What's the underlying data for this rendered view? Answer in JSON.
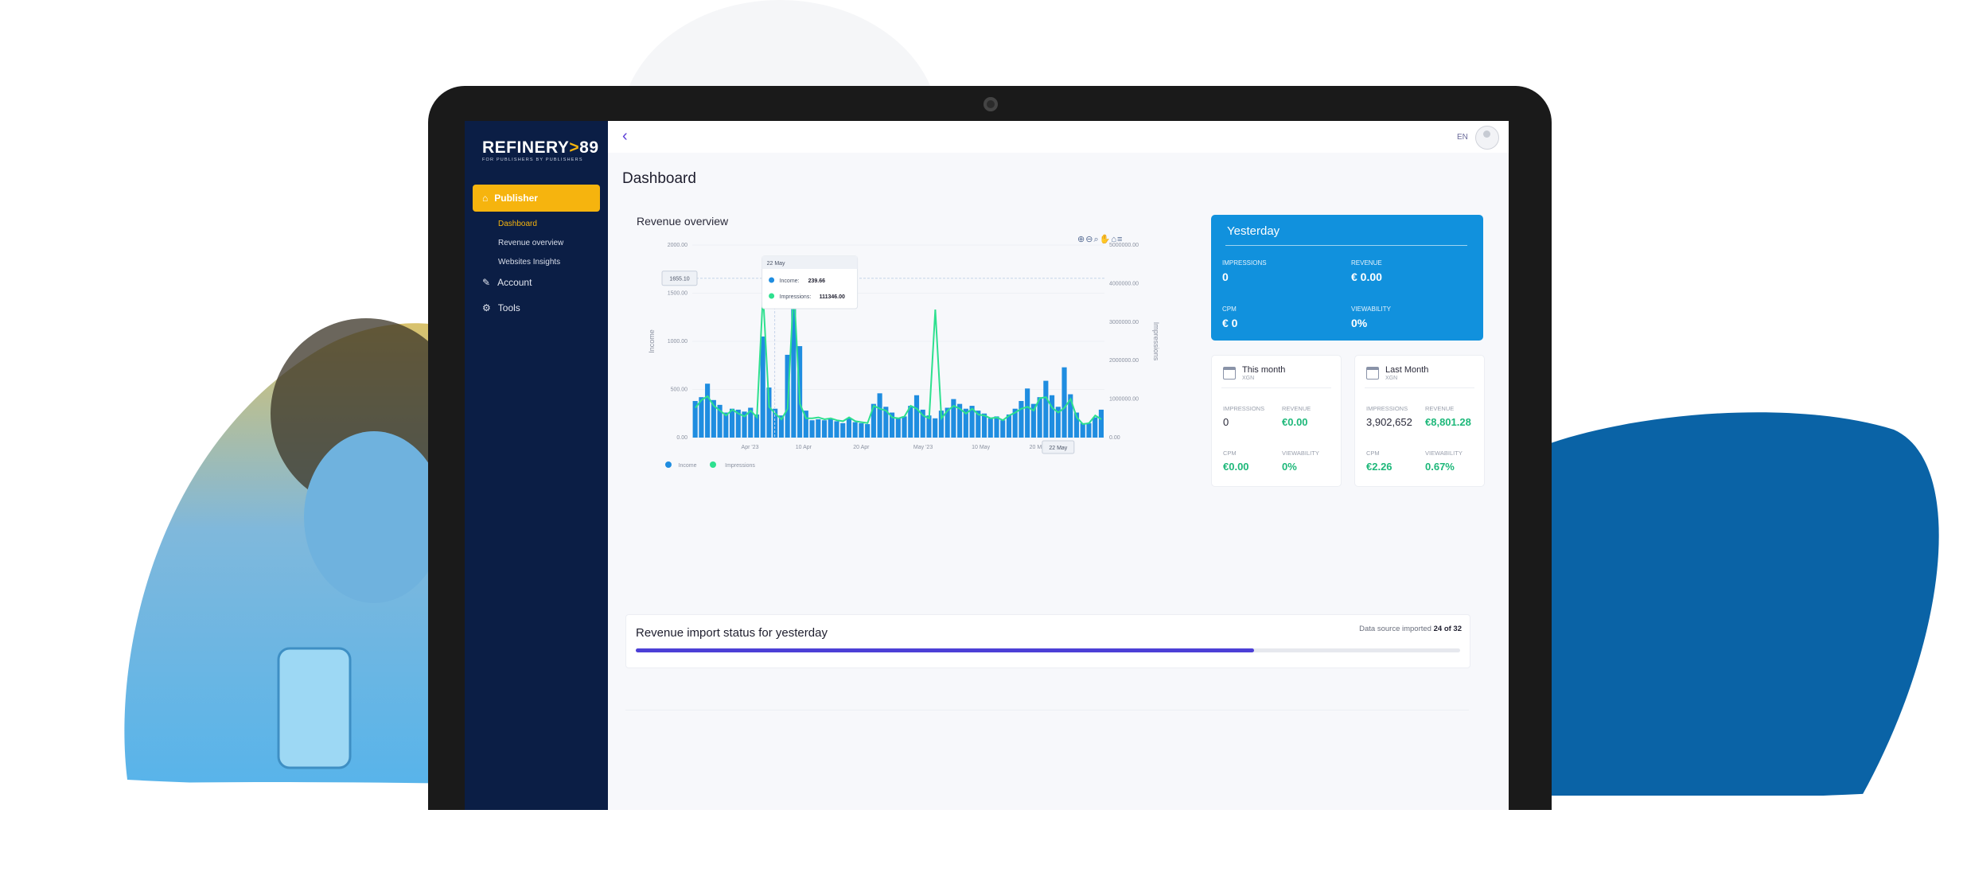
{
  "brand": {
    "logo_text": "REFINERY",
    "logo_num": "89",
    "tagline": "FOR PUBLISHERS BY PUBLISHERS"
  },
  "sidebar": {
    "active": {
      "label": "Publisher",
      "icon": "home-icon"
    },
    "subitems": [
      {
        "label": "Dashboard",
        "active": true
      },
      {
        "label": "Revenue overview",
        "active": false
      },
      {
        "label": "Websites Insights",
        "active": false
      }
    ],
    "items": [
      {
        "label": "Account",
        "icon": "edit-icon"
      },
      {
        "label": "Tools",
        "icon": "gear-icon"
      }
    ]
  },
  "header": {
    "language": "EN"
  },
  "page": {
    "title": "Dashboard"
  },
  "revenue_card": {
    "title": "Revenue overview"
  },
  "chart_data": {
    "type": "bar",
    "title": "Revenue overview",
    "ylabel": "Income",
    "y2label": "Impressions",
    "ylim": [
      0,
      2000
    ],
    "y2lim": [
      0,
      5000000
    ],
    "yticks": [
      "0.00",
      "500.00",
      "1000.00",
      "1500.00",
      "2000.00"
    ],
    "y2ticks": [
      "0.00",
      "1000000.00",
      "2000000.00",
      "3000000.00",
      "4000000.00",
      "5000000.00"
    ],
    "xticks": [
      "Apr '23",
      "10 Apr",
      "20 Apr",
      "May '23",
      "10 May",
      "20 May"
    ],
    "income": [
      380,
      420,
      560,
      390,
      340,
      260,
      300,
      290,
      270,
      310,
      240,
      1050,
      520,
      300,
      230,
      860,
      1450,
      950,
      280,
      180,
      190,
      180,
      190,
      170,
      150,
      200,
      160,
      150,
      140,
      350,
      460,
      320,
      260,
      200,
      220,
      330,
      440,
      290,
      230,
      200,
      280,
      310,
      400,
      350,
      300,
      330,
      280,
      250,
      200,
      220,
      180,
      240,
      300,
      380,
      510,
      350,
      420,
      590,
      440,
      320,
      730,
      450,
      260,
      150,
      150,
      210,
      290
    ],
    "impressions_income_scale": [
      310,
      390,
      430,
      330,
      280,
      230,
      290,
      250,
      220,
      280,
      210,
      1490,
      320,
      250,
      190,
      300,
      1560,
      350,
      200,
      200,
      210,
      190,
      200,
      180,
      170,
      210,
      170,
      160,
      150,
      330,
      300,
      280,
      210,
      200,
      220,
      330,
      300,
      230,
      200,
      1330,
      200,
      280,
      330,
      300,
      250,
      300,
      240,
      230,
      200,
      210,
      180,
      230,
      260,
      300,
      320,
      280,
      410,
      420,
      310,
      260,
      310,
      400,
      210,
      140,
      150,
      230,
      190
    ],
    "legend": [
      "Income",
      "Impressions"
    ],
    "tooltip": {
      "date": "22 May",
      "income_label": "Income:",
      "income_value": "239.66",
      "impressions_label": "Impressions:",
      "impressions_value": "111346.00"
    },
    "crosshair_y_label": "1655.10",
    "crosshair_x_label": "22 May"
  },
  "yesterday": {
    "title": "Yesterday",
    "impressions_label": "IMPRESSIONS",
    "impressions": "0",
    "revenue_label": "REVENUE",
    "revenue": "€ 0.00",
    "cpm_label": "CPM",
    "cpm": "€ 0",
    "viewability_label": "VIEWABILITY",
    "viewability": "0%"
  },
  "this_month": {
    "title": "This month",
    "sub": "XGN",
    "impressions_label": "IMPRESSIONS",
    "impressions": "0",
    "revenue_label": "REVENUE",
    "revenue": "€0.00",
    "cpm_label": "CPM",
    "cpm": "€0.00",
    "viewability_label": "VIEWABILITY",
    "viewability": "0%"
  },
  "last_month": {
    "title": "Last Month",
    "sub": "XGN",
    "impressions_label": "IMPRESSIONS",
    "impressions": "3,902,652",
    "revenue_label": "REVENUE",
    "revenue": "€8,801.28",
    "cpm_label": "CPM",
    "cpm": "€2.26",
    "viewability_label": "VIEWABILITY",
    "viewability": "0.67%"
  },
  "import_status": {
    "title": "Revenue import status for yesterday",
    "prefix": "Data source imported",
    "count": "24 of 32",
    "progress_fraction": 0.75
  },
  "colors": {
    "navy": "#0b1e45",
    "accent": "#f6b40e",
    "blue": "#1191dd",
    "green": "#1eb87a",
    "bar": "#1f8de0",
    "line": "#2ee08f",
    "progress": "#4c3fd6"
  }
}
